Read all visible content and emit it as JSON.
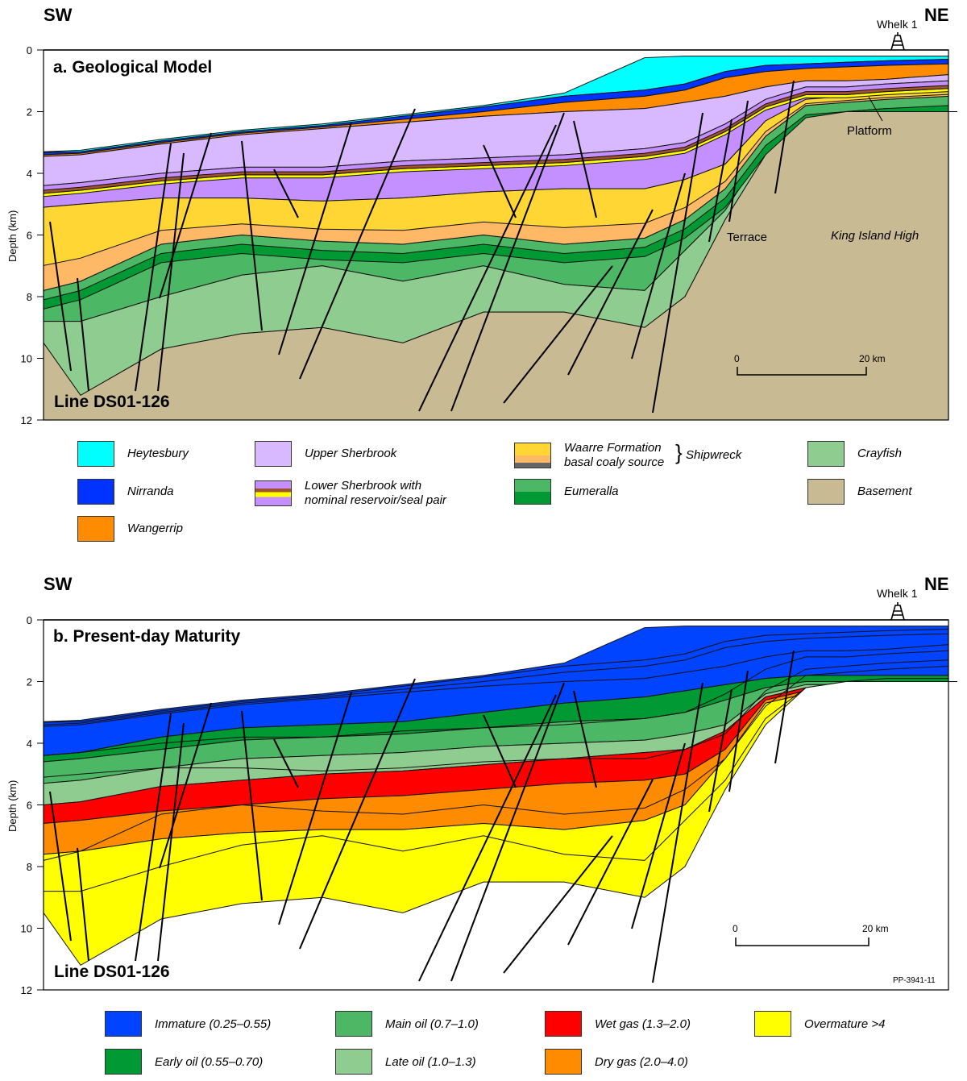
{
  "panel_a": {
    "title": "a. Geological Model",
    "left_dir": "SW",
    "right_dir": "NE",
    "well": "Whelk 1",
    "line": "Line DS01-126",
    "ylabel": "Depth (km)",
    "yticks": [
      "0",
      "2",
      "4",
      "6",
      "8",
      "10",
      "12"
    ],
    "scale": [
      "0",
      "20 km"
    ],
    "labels": {
      "platform": "Platform",
      "terrace": "Terrace",
      "high": "King Island High"
    }
  },
  "legend_a": [
    {
      "label": "Heytesbury",
      "colors": [
        "#00ffff"
      ]
    },
    {
      "label": "Nirranda",
      "colors": [
        "#0033ff"
      ]
    },
    {
      "label": "Wangerrip",
      "colors": [
        "#ff8c00"
      ]
    },
    {
      "label": "Upper Sherbrook",
      "colors": [
        "#d8b8ff"
      ]
    },
    {
      "label": "Lower Sherbrook with\nnominal reservoir/seal pair",
      "colors": [
        "#c490ff",
        "#a0522d",
        "#ffff00",
        "#c490ff"
      ]
    },
    {
      "label": "Waarre Formation\nbasal coaly source",
      "colors": [
        "#ffd633",
        "#ffb866",
        "#666666"
      ],
      "group": "Shipwreck"
    },
    {
      "label": "Eumeralla",
      "colors": [
        "#4cb866",
        "#009933"
      ]
    },
    {
      "label": "Crayfish",
      "colors": [
        "#8fcc8f"
      ]
    },
    {
      "label": "Basement",
      "colors": [
        "#c8ba92"
      ]
    }
  ],
  "panel_b": {
    "title": "b. Present-day Maturity",
    "left_dir": "SW",
    "right_dir": "NE",
    "well": "Whelk 1",
    "line": "Line DS01-126",
    "ylabel": "Depth (km)",
    "yticks": [
      "0",
      "2",
      "4",
      "6",
      "8",
      "10",
      "12"
    ],
    "scale": [
      "0",
      "20 km"
    ],
    "code": "PP-3941-11"
  },
  "legend_b": [
    {
      "label": "Immature (0.25–0.55)",
      "color": "#0044ff"
    },
    {
      "label": "Early oil (0.55–0.70)",
      "color": "#009933"
    },
    {
      "label": "Main oil (0.7–1.0)",
      "color": "#4cb866"
    },
    {
      "label": "Late oil (1.0–1.3)",
      "color": "#8fcc8f"
    },
    {
      "label": "Wet gas (1.3–2.0)",
      "color": "#ff0000"
    },
    {
      "label": "Dry gas (2.0–4.0)",
      "color": "#ff8c00"
    },
    {
      "label": "Overmature >4",
      "color": "#ffff00"
    }
  ]
}
